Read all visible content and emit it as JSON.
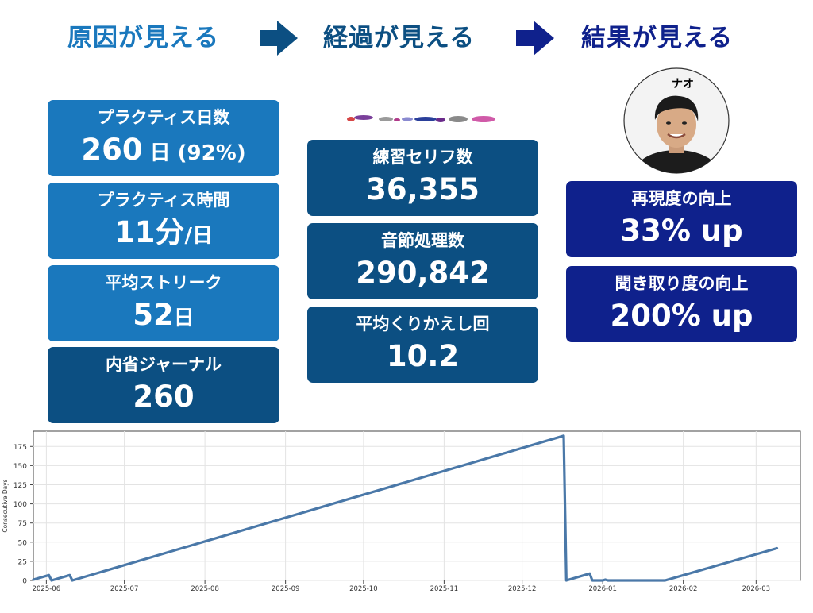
{
  "header": {
    "step1": "原因が見える",
    "step2": "経過が見える",
    "step3": "結果が見える",
    "colors": {
      "step1": "#1a78bd",
      "step2": "#0c4f82",
      "step3": "#0f218c"
    }
  },
  "left": [
    {
      "label": "プラクティス日数",
      "value": "260",
      "unit": " 日 (92%)"
    },
    {
      "label": "プラクティス時間",
      "value": "11分",
      "unit": "/日"
    },
    {
      "label": "平均ストリーク",
      "value": "52",
      "unit": "日"
    },
    {
      "label": "内省ジャーナル",
      "value": "260",
      "unit": ""
    }
  ],
  "middle": [
    {
      "label": "練習セリフ数",
      "value": "36,355"
    },
    {
      "label": "音節処理数",
      "value": "290,842"
    },
    {
      "label": "平均くりかえし回",
      "value": "10.2"
    }
  ],
  "right": {
    "person_name": "ナオ",
    "cards": [
      {
        "label": "再現度の向上",
        "value": "33% up"
      },
      {
        "label": "聞き取り度の向上",
        "value": "200% up"
      }
    ]
  },
  "chart_data": {
    "type": "line",
    "ylabel": "Consecutive Days",
    "xlabel": "",
    "ylim": [
      0,
      195
    ],
    "yticks": [
      0,
      25,
      50,
      75,
      100,
      125,
      150,
      175
    ],
    "xticks": [
      "2025-06",
      "2025-07",
      "2025-08",
      "2025-09",
      "2025-10",
      "2025-11",
      "2025-12",
      "2026-01",
      "2026-02",
      "2026-03"
    ],
    "xrange": [
      "2025-05-27",
      "2026-03-18"
    ],
    "grid": true,
    "color": "#4a78a8",
    "series": [
      {
        "points": [
          [
            "2025-05-27",
            1
          ],
          [
            "2025-06-02",
            7
          ],
          [
            "2025-06-03",
            0
          ],
          [
            "2025-06-10",
            7
          ],
          [
            "2025-06-11",
            0
          ],
          [
            "2025-12-17",
            189
          ],
          [
            "2025-12-18",
            0
          ],
          [
            "2025-12-27",
            9
          ],
          [
            "2025-12-28",
            0
          ],
          [
            "2026-01-01",
            0
          ],
          [
            "2026-01-02",
            1
          ],
          [
            "2026-01-03",
            0
          ],
          [
            "2026-01-25",
            0
          ],
          [
            "2026-03-09",
            42
          ]
        ]
      }
    ]
  }
}
